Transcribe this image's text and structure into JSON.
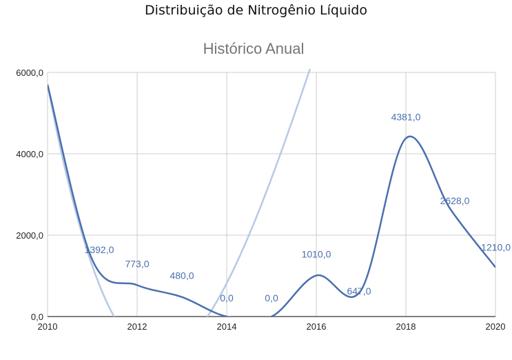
{
  "page": {
    "title": "Distribuição de Nitrogênio Líquido"
  },
  "chart_data": {
    "type": "line",
    "title": "Histórico Anual",
    "xlabel": "",
    "ylabel": "",
    "x": [
      2010,
      2011,
      2012,
      2013,
      2014,
      2015,
      2016,
      2017,
      2018,
      2019,
      2020
    ],
    "x_ticks": [
      "2010",
      "2012",
      "2014",
      "2016",
      "2018",
      "2020"
    ],
    "y_ticks": [
      "0,0",
      "2000,0",
      "4000,0",
      "6000,0"
    ],
    "xlim": [
      2010,
      2020
    ],
    "ylim": [
      0,
      6000
    ],
    "grid": true,
    "series": [
      {
        "values": [
          5700,
          1392,
          773,
          480,
          0,
          0,
          1010,
          647,
          4381,
          2628,
          1210
        ],
        "labels": [
          "",
          "1392,0",
          "773,0",
          "480,0",
          "0,0",
          "0,0",
          "1010,0",
          "647,0",
          "4381,0",
          "2628,0",
          "1210,0"
        ],
        "color": "#4a6fae"
      }
    ],
    "trendline": {
      "type": "polynomial",
      "color": "#b7c9e3",
      "coefficients": [
        5700,
        -5860,
        1480,
        -80
      ]
    },
    "label_color": "#4a6fae",
    "axis_text_color": "#222222",
    "title_color": "#757575",
    "grid_color": "#cccccc"
  }
}
